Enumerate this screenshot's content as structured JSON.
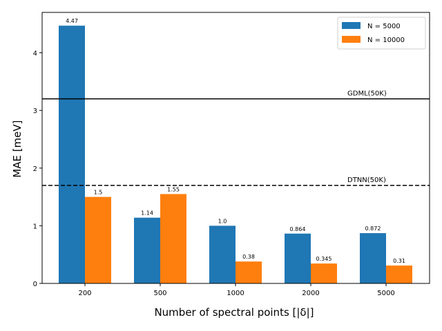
{
  "chart_data": {
    "type": "bar",
    "xlabel": "Number of spectral points [|δ|]",
    "ylabel": "MAE [meV]",
    "categories": [
      "200",
      "500",
      "1000",
      "2000",
      "5000"
    ],
    "series": [
      {
        "name": "N = 5000",
        "color": "#1f77b4",
        "values": [
          4.47,
          1.14,
          1.0,
          0.864,
          0.872
        ],
        "labels": [
          "4.47",
          "1.14",
          "1.0",
          "0.864",
          "0.872"
        ]
      },
      {
        "name": "N = 10000",
        "color": "#ff7f0e",
        "values": [
          1.5,
          1.55,
          0.38,
          0.345,
          0.31
        ],
        "labels": [
          "1.5",
          "1.55",
          "0.38",
          "0.345",
          "0.31"
        ]
      }
    ],
    "reference_lines": [
      {
        "label": "GDML(50K)",
        "value": 3.2,
        "style": "solid"
      },
      {
        "label": "DTNN(50K)",
        "value": 1.7,
        "style": "dashed"
      }
    ],
    "ylim": [
      0,
      4.7
    ],
    "yticks": [
      0,
      1,
      2,
      3,
      4
    ],
    "grid": false,
    "legend_position": "top-right"
  }
}
